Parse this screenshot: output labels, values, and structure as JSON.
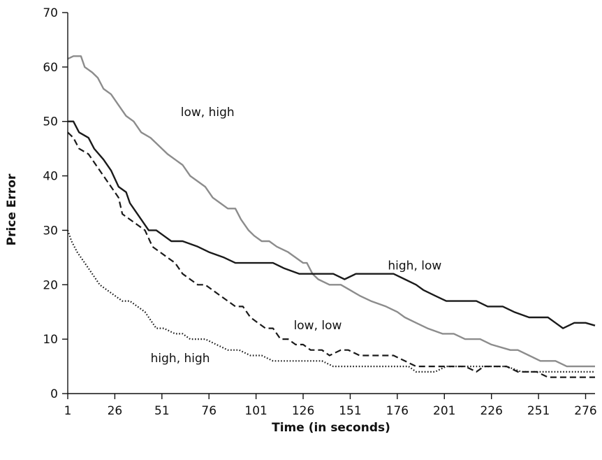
{
  "chart_data": {
    "type": "line",
    "title": "",
    "xlabel": "Time (in seconds)",
    "ylabel": "Price Error",
    "xlim": [
      1,
      281
    ],
    "ylim": [
      0,
      70
    ],
    "x_ticks": [
      1,
      26,
      51,
      76,
      101,
      126,
      151,
      176,
      201,
      226,
      251,
      276
    ],
    "y_ticks": [
      0,
      10,
      20,
      30,
      40,
      50,
      60,
      70
    ],
    "grid": false,
    "legend": "none",
    "series": [
      {
        "name": "low, high",
        "color": "#8c8c8c",
        "dash": "solid",
        "label_at": [
          61,
          51
        ],
        "points": [
          [
            1,
            61.5
          ],
          [
            4,
            62
          ],
          [
            8,
            62
          ],
          [
            10,
            60
          ],
          [
            14,
            59
          ],
          [
            17,
            58
          ],
          [
            20,
            56
          ],
          [
            24,
            55
          ],
          [
            28,
            53
          ],
          [
            32,
            51
          ],
          [
            36,
            50
          ],
          [
            40,
            48
          ],
          [
            45,
            47
          ],
          [
            48,
            46
          ],
          [
            54,
            44
          ],
          [
            58,
            43
          ],
          [
            62,
            42
          ],
          [
            66,
            40
          ],
          [
            70,
            39
          ],
          [
            74,
            38
          ],
          [
            78,
            36
          ],
          [
            82,
            35
          ],
          [
            86,
            34
          ],
          [
            90,
            34
          ],
          [
            93,
            32
          ],
          [
            97,
            30
          ],
          [
            100,
            29
          ],
          [
            104,
            28
          ],
          [
            108,
            28
          ],
          [
            112,
            27
          ],
          [
            118,
            26
          ],
          [
            122,
            25
          ],
          [
            126,
            24
          ],
          [
            128,
            24
          ],
          [
            131,
            22
          ],
          [
            134,
            21
          ],
          [
            140,
            20
          ],
          [
            146,
            20
          ],
          [
            151,
            19
          ],
          [
            156,
            18
          ],
          [
            162,
            17
          ],
          [
            170,
            16
          ],
          [
            176,
            15
          ],
          [
            180,
            14
          ],
          [
            186,
            13
          ],
          [
            192,
            12
          ],
          [
            200,
            11
          ],
          [
            206,
            11
          ],
          [
            212,
            10
          ],
          [
            220,
            10
          ],
          [
            226,
            9
          ],
          [
            236,
            8
          ],
          [
            240,
            8
          ],
          [
            246,
            7
          ],
          [
            252,
            6
          ],
          [
            260,
            6
          ],
          [
            266,
            5
          ],
          [
            272,
            5
          ],
          [
            278,
            5
          ],
          [
            281,
            5
          ]
        ]
      },
      {
        "name": "high, low",
        "color": "#1a1a1a",
        "dash": "solid",
        "label_at": [
          171,
          22.8
        ],
        "points": [
          [
            1,
            50
          ],
          [
            4,
            50
          ],
          [
            7,
            48
          ],
          [
            12,
            47
          ],
          [
            15,
            45
          ],
          [
            20,
            43
          ],
          [
            24,
            41
          ],
          [
            28,
            38
          ],
          [
            32,
            37
          ],
          [
            34,
            35
          ],
          [
            36,
            34
          ],
          [
            40,
            32
          ],
          [
            44,
            30
          ],
          [
            48,
            30
          ],
          [
            52,
            29
          ],
          [
            56,
            28
          ],
          [
            62,
            28
          ],
          [
            70,
            27
          ],
          [
            76,
            26
          ],
          [
            84,
            25
          ],
          [
            90,
            24
          ],
          [
            98,
            24
          ],
          [
            104,
            24
          ],
          [
            110,
            24
          ],
          [
            116,
            23
          ],
          [
            124,
            22
          ],
          [
            130,
            22
          ],
          [
            136,
            22
          ],
          [
            142,
            22
          ],
          [
            148,
            21
          ],
          [
            154,
            22
          ],
          [
            160,
            22
          ],
          [
            168,
            22
          ],
          [
            174,
            22
          ],
          [
            180,
            21
          ],
          [
            186,
            20
          ],
          [
            190,
            19
          ],
          [
            196,
            18
          ],
          [
            202,
            17
          ],
          [
            210,
            17
          ],
          [
            218,
            17
          ],
          [
            224,
            16
          ],
          [
            232,
            16
          ],
          [
            238,
            15
          ],
          [
            246,
            14
          ],
          [
            252,
            14
          ],
          [
            256,
            14
          ],
          [
            260,
            13
          ],
          [
            264,
            12
          ],
          [
            270,
            13
          ],
          [
            276,
            13
          ],
          [
            281,
            12.5
          ]
        ]
      },
      {
        "name": "low, low",
        "color": "#1a1a1a",
        "dash": "dashed",
        "label_at": [
          121,
          11.8
        ],
        "points": [
          [
            1,
            48
          ],
          [
            4,
            47
          ],
          [
            7,
            45
          ],
          [
            12,
            44
          ],
          [
            16,
            42
          ],
          [
            20,
            40
          ],
          [
            24,
            38
          ],
          [
            28,
            36
          ],
          [
            30,
            33
          ],
          [
            34,
            32
          ],
          [
            38,
            31
          ],
          [
            42,
            30
          ],
          [
            46,
            27
          ],
          [
            50,
            26
          ],
          [
            54,
            25
          ],
          [
            58,
            24
          ],
          [
            62,
            22
          ],
          [
            66,
            21
          ],
          [
            70,
            20
          ],
          [
            74,
            20
          ],
          [
            78,
            19
          ],
          [
            82,
            18
          ],
          [
            86,
            17
          ],
          [
            90,
            16
          ],
          [
            94,
            16
          ],
          [
            98,
            14
          ],
          [
            102,
            13
          ],
          [
            106,
            12
          ],
          [
            110,
            12
          ],
          [
            114,
            10
          ],
          [
            118,
            10
          ],
          [
            122,
            9
          ],
          [
            126,
            9
          ],
          [
            130,
            8
          ],
          [
            136,
            8
          ],
          [
            140,
            7
          ],
          [
            146,
            8
          ],
          [
            150,
            8
          ],
          [
            156,
            7
          ],
          [
            162,
            7
          ],
          [
            168,
            7
          ],
          [
            174,
            7
          ],
          [
            180,
            6
          ],
          [
            186,
            5
          ],
          [
            190,
            5
          ],
          [
            196,
            5
          ],
          [
            202,
            5
          ],
          [
            206,
            5
          ],
          [
            212,
            5
          ],
          [
            218,
            4
          ],
          [
            222,
            5
          ],
          [
            228,
            5
          ],
          [
            234,
            5
          ],
          [
            240,
            4
          ],
          [
            246,
            4
          ],
          [
            250,
            4
          ],
          [
            256,
            3
          ],
          [
            260,
            3
          ],
          [
            266,
            3
          ],
          [
            270,
            3
          ],
          [
            276,
            3
          ],
          [
            281,
            3
          ]
        ]
      },
      {
        "name": "high, high",
        "color": "#1a1a1a",
        "dash": "dotted",
        "label_at": [
          45,
          5.8
        ],
        "points": [
          [
            1,
            30
          ],
          [
            3,
            28
          ],
          [
            6,
            26
          ],
          [
            10,
            24
          ],
          [
            14,
            22
          ],
          [
            18,
            20
          ],
          [
            22,
            19
          ],
          [
            26,
            18
          ],
          [
            30,
            17
          ],
          [
            34,
            17
          ],
          [
            38,
            16
          ],
          [
            42,
            15
          ],
          [
            46,
            13
          ],
          [
            48,
            12
          ],
          [
            52,
            12
          ],
          [
            58,
            11
          ],
          [
            62,
            11
          ],
          [
            66,
            10
          ],
          [
            70,
            10
          ],
          [
            74,
            10
          ],
          [
            80,
            9
          ],
          [
            86,
            8
          ],
          [
            92,
            8
          ],
          [
            98,
            7
          ],
          [
            104,
            7
          ],
          [
            110,
            6
          ],
          [
            114,
            6
          ],
          [
            120,
            6
          ],
          [
            126,
            6
          ],
          [
            130,
            6
          ],
          [
            136,
            6
          ],
          [
            142,
            5
          ],
          [
            146,
            5
          ],
          [
            150,
            5
          ],
          [
            156,
            5
          ],
          [
            160,
            5
          ],
          [
            166,
            5
          ],
          [
            172,
            5
          ],
          [
            176,
            5
          ],
          [
            182,
            5
          ],
          [
            186,
            4
          ],
          [
            190,
            4
          ],
          [
            196,
            4
          ],
          [
            202,
            5
          ],
          [
            210,
            5
          ],
          [
            218,
            5
          ],
          [
            226,
            5
          ],
          [
            234,
            5
          ],
          [
            242,
            4
          ],
          [
            250,
            4
          ],
          [
            256,
            4
          ],
          [
            262,
            4
          ],
          [
            266,
            4
          ],
          [
            272,
            4
          ],
          [
            276,
            4
          ],
          [
            281,
            4
          ]
        ]
      }
    ]
  }
}
